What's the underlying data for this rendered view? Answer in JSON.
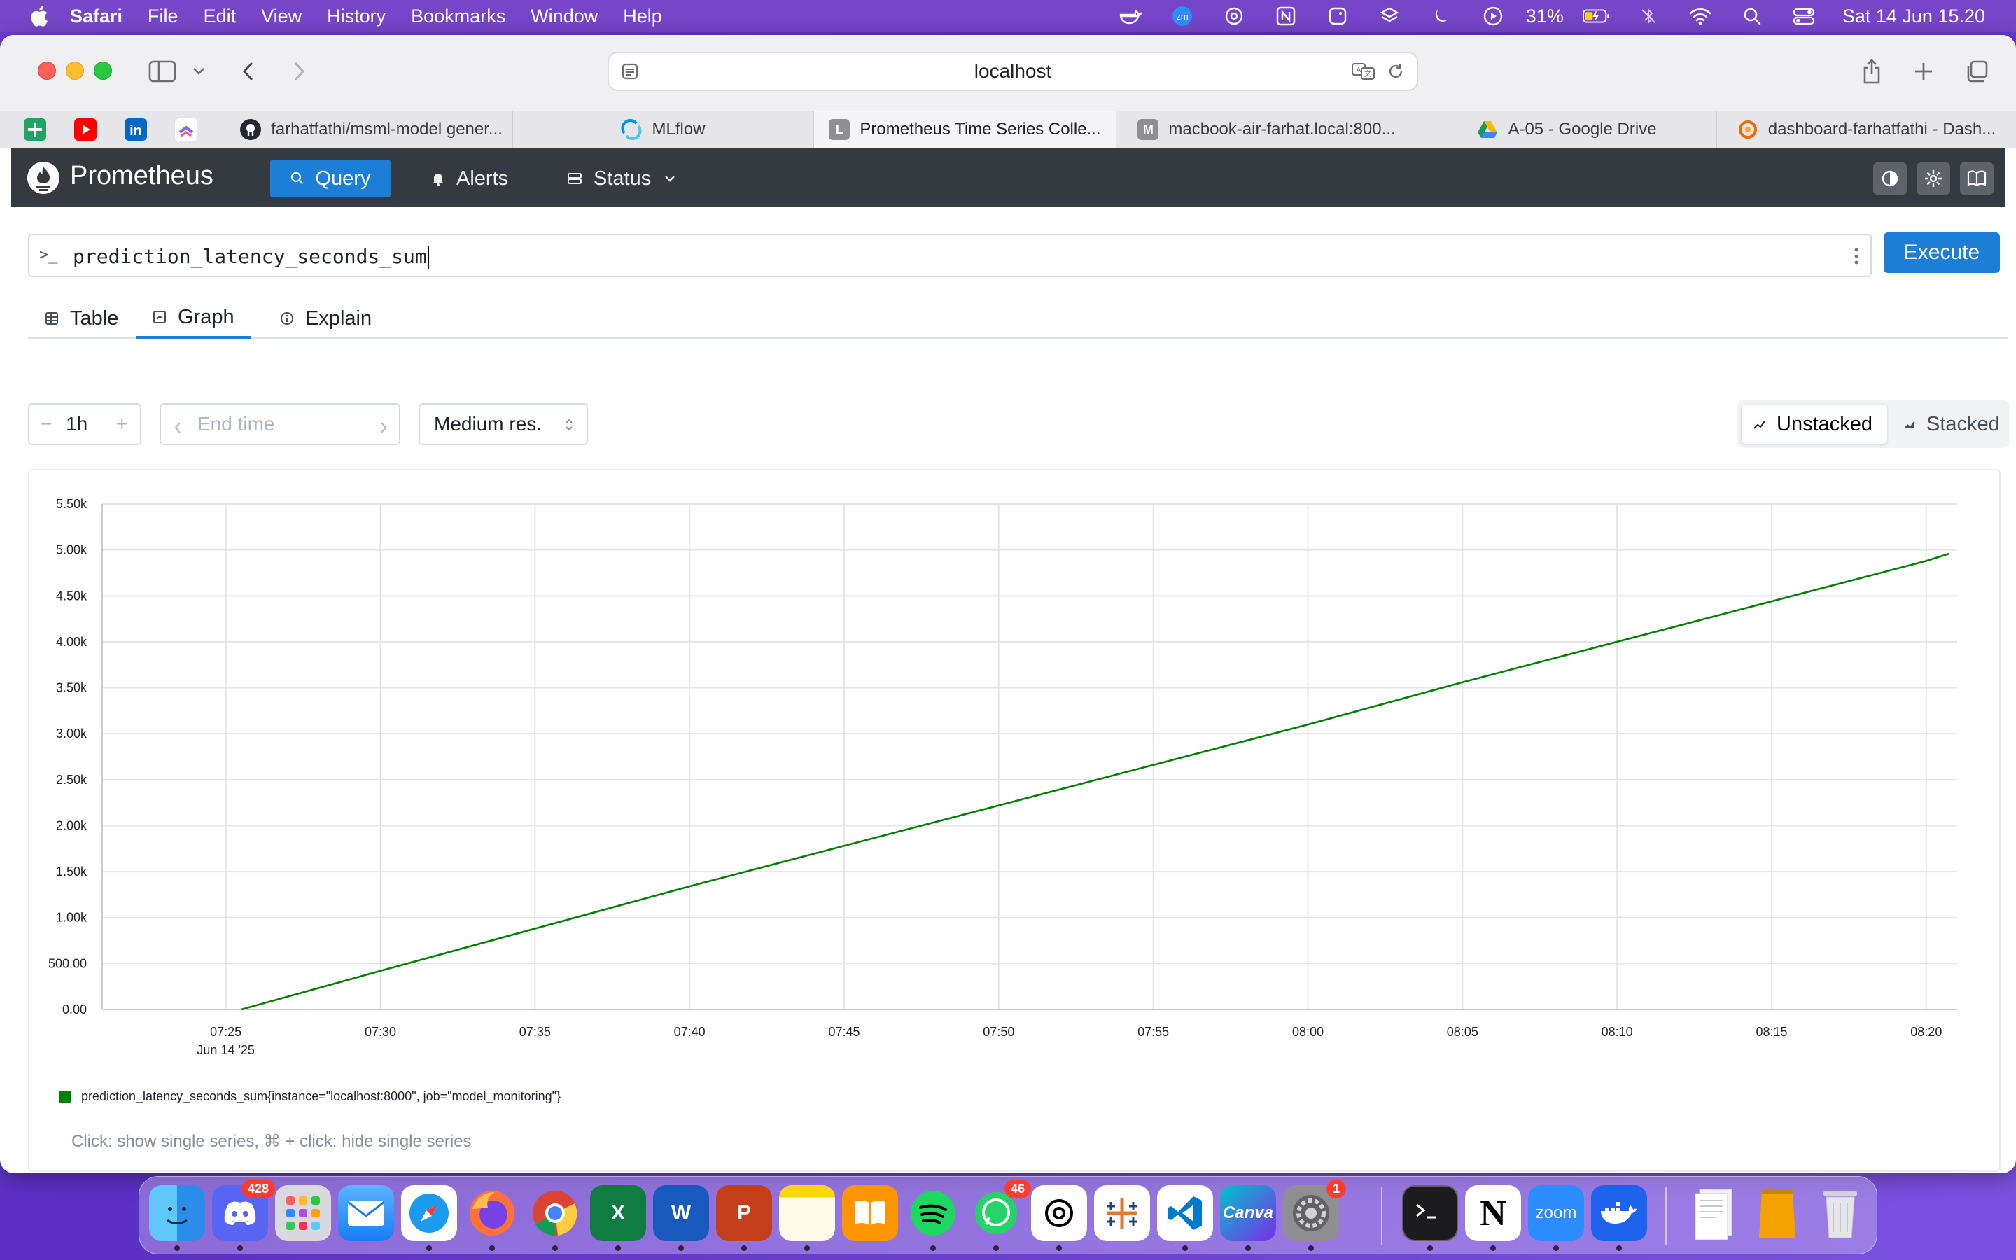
{
  "menubar": {
    "app_name": "Safari",
    "items": [
      "File",
      "Edit",
      "View",
      "History",
      "Bookmarks",
      "Window",
      "Help"
    ],
    "battery": "31%",
    "datetime": "Sat 14 Jun  15.20",
    "status_icons": [
      "docker-whale-icon",
      "zoom-icon",
      "chatgpt-icon",
      "notion-icon",
      "screenshot-icon",
      "layers-icon",
      "moon-icon",
      "play-icon",
      "battery-icon",
      "bluetooth-off-icon",
      "wifi-icon",
      "search-icon",
      "control-center-icon"
    ]
  },
  "browser": {
    "url": "localhost",
    "tabs": [
      {
        "label": "farhatfathi/msml-model gener...",
        "icon": "github-icon"
      },
      {
        "label": "MLflow",
        "icon": "mlflow-icon"
      },
      {
        "label": "Prometheus Time Series Colle...",
        "icon": "letter-l-icon",
        "active": true
      },
      {
        "label": "macbook-air-farhat.local:800...",
        "icon": "letter-m-icon"
      },
      {
        "label": "A-05 - Google Drive",
        "icon": "google-drive-icon"
      },
      {
        "label": "dashboard-farhatfathi - Dash...",
        "icon": "grafana-icon"
      }
    ],
    "tab_favicon_letters": {
      "prometheus": "L",
      "macbook": "M"
    }
  },
  "prometheus": {
    "brand": "Prometheus",
    "nav": {
      "query": "Query",
      "alerts": "Alerts",
      "status": "Status"
    },
    "query": {
      "prompt": ">_",
      "expression": "prediction_latency_seconds_sum"
    },
    "execute_label": "Execute",
    "view_tabs": {
      "table": "Table",
      "graph": "Graph",
      "explain": "Explain"
    },
    "range": {
      "value": "1h",
      "minus": "−",
      "plus": "+"
    },
    "end_time_placeholder": "End time",
    "resolution": "Medium res.",
    "stack_modes": {
      "unstacked": "Unstacked",
      "stacked": "Stacked"
    },
    "legend_label": "prediction_latency_seconds_sum{instance=\"localhost:8000\", job=\"model_monitoring\"}",
    "hint": "Click: show single series, ⌘ + click: hide single series",
    "series_color": "#008000",
    "accent_color": "#1c7ed6"
  },
  "chart_data": {
    "type": "line",
    "title": "",
    "xlabel": "",
    "ylabel": "",
    "x_ticks": [
      "07:25",
      "07:30",
      "07:35",
      "07:40",
      "07:45",
      "07:50",
      "07:55",
      "08:00",
      "08:05",
      "08:10",
      "08:15",
      "08:20"
    ],
    "x_date_label": "Jun 14 '25",
    "x_range": [
      "07:21",
      "08:21"
    ],
    "y_ticks": [
      "0.00",
      "500.00",
      "1.00k",
      "1.50k",
      "2.00k",
      "2.50k",
      "3.00k",
      "3.50k",
      "4.00k",
      "4.50k",
      "5.00k",
      "5.50k"
    ],
    "ylim": [
      0,
      5500
    ],
    "grid": true,
    "series": [
      {
        "name": "prediction_latency_seconds_sum{instance=\"localhost:8000\", job=\"model_monitoring\"}",
        "color": "#008000",
        "x": [
          "07:25:30",
          "07:30",
          "07:35",
          "07:40",
          "07:45",
          "07:50",
          "07:55",
          "08:00",
          "08:05",
          "08:10",
          "08:15",
          "08:20",
          "08:20:45"
        ],
        "y": [
          0,
          420,
          880,
          1340,
          1780,
          2220,
          2660,
          3100,
          3560,
          4000,
          4440,
          4880,
          4960
        ]
      }
    ]
  },
  "dock": {
    "badges": {
      "discord": "428",
      "whatsapp": "46",
      "settings": "1"
    },
    "apps": [
      "finder-icon",
      "discord-icon",
      "launchpad-icon",
      "mail-icon",
      "safari-icon",
      "firefox-icon",
      "chrome-icon",
      "excel-icon",
      "word-icon",
      "powerpoint-icon",
      "notes-icon",
      "books-icon",
      "spotify-icon",
      "whatsapp-icon",
      "chatgpt-icon",
      "tableau-icon",
      "vscode-icon",
      "canva-icon",
      "settings-icon",
      "terminal-icon",
      "notion-icon",
      "zoom-icon",
      "docker-icon",
      "documents-icon",
      "archive-icon",
      "trash-icon"
    ],
    "labels": {
      "excel": "X",
      "word": "W",
      "powerpoint": "P",
      "canva": "Canva",
      "zoom": "zoom",
      "notion": "N"
    }
  }
}
